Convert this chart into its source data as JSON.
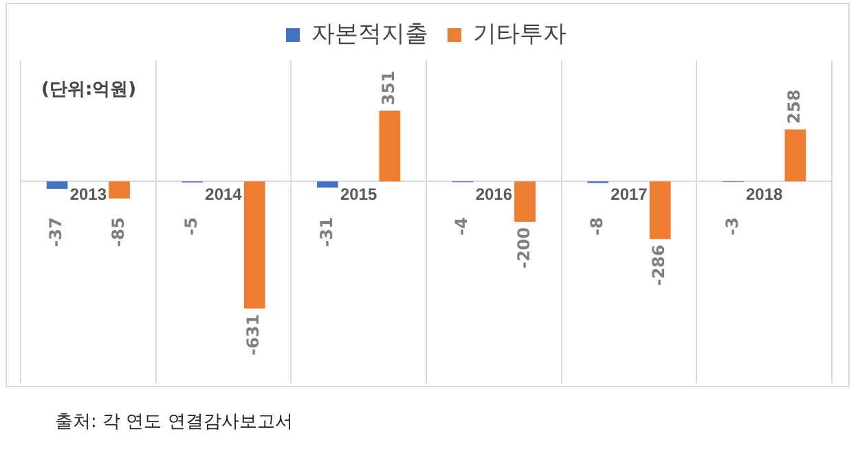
{
  "chart_data": {
    "type": "bar",
    "categories": [
      "2013",
      "2014",
      "2015",
      "2016",
      "2017",
      "2018"
    ],
    "series": [
      {
        "name": "자본적지출",
        "color": "#4472c4",
        "values": [
          -37,
          -5,
          -31,
          -4,
          -8,
          -3
        ]
      },
      {
        "name": "기타투자",
        "color": "#ed7d31",
        "values": [
          -85,
          -631,
          351,
          -200,
          -286,
          258
        ]
      }
    ],
    "data_labels": true,
    "legend": "top",
    "grid": "x",
    "annotations": [
      "(단위:억원)",
      "출처: 각 연도 연결감사보고서"
    ]
  }
}
